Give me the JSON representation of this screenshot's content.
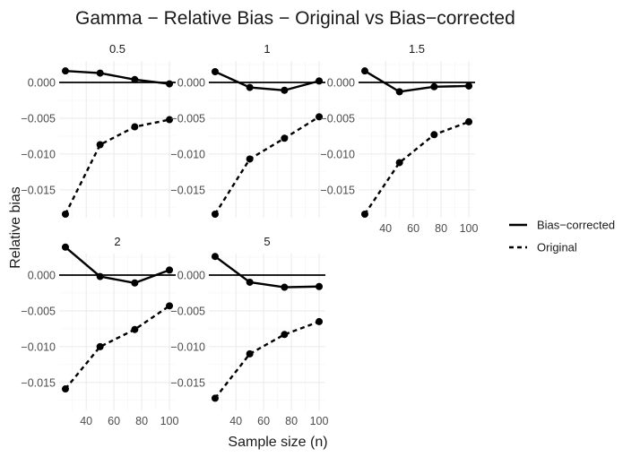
{
  "chart_data": {
    "type": "line",
    "title": "Gamma − Relative Bias − Original vs Bias−corrected",
    "xlabel": "Sample size (n)",
    "ylabel": "Relative bias",
    "x": [
      25,
      50,
      75,
      100
    ],
    "x_ticks": [
      40,
      60,
      80,
      100
    ],
    "x_tick_labels": [
      "40",
      "60",
      "80",
      "100"
    ],
    "x_range": [
      20.5,
      104.5
    ],
    "y_range": [
      -0.0189,
      0.003
    ],
    "y_ticks": [
      0.0,
      -0.005,
      -0.01,
      -0.015
    ],
    "y_tick_labels": [
      "0.000",
      "−0.005",
      "−0.010",
      "−0.015"
    ],
    "reference_line_y": 0,
    "legend": {
      "position": "right",
      "entries": [
        {
          "label": "Bias−corrected",
          "style": "solid"
        },
        {
          "label": "Original",
          "style": "dashed"
        }
      ]
    },
    "panels": [
      {
        "label": "0.5",
        "series": [
          {
            "name": "Bias−corrected",
            "values": [
              0.0016,
              0.0013,
              0.0004,
              -0.0002
            ]
          },
          {
            "name": "Original",
            "values": [
              -0.0184,
              -0.0087,
              -0.0062,
              -0.0052
            ]
          }
        ]
      },
      {
        "label": "1",
        "series": [
          {
            "name": "Bias−corrected",
            "values": [
              0.0015,
              -0.0007,
              -0.0011,
              0.0002
            ]
          },
          {
            "name": "Original",
            "values": [
              -0.0184,
              -0.0107,
              -0.0078,
              -0.0048
            ]
          }
        ]
      },
      {
        "label": "1.5",
        "series": [
          {
            "name": "Bias−corrected",
            "values": [
              0.0016,
              -0.0013,
              -0.0006,
              -0.0005
            ]
          },
          {
            "name": "Original",
            "values": [
              -0.0184,
              -0.0112,
              -0.0073,
              -0.0055
            ]
          }
        ]
      },
      {
        "label": "2",
        "series": [
          {
            "name": "Bias−corrected",
            "values": [
              0.0039,
              -0.0002,
              -0.0011,
              0.0007
            ]
          },
          {
            "name": "Original",
            "values": [
              -0.0159,
              -0.01,
              -0.0076,
              -0.0043
            ]
          }
        ]
      },
      {
        "label": "5",
        "series": [
          {
            "name": "Bias−corrected",
            "values": [
              0.0026,
              -0.001,
              -0.0017,
              -0.0016
            ]
          },
          {
            "name": "Original",
            "values": [
              -0.0172,
              -0.011,
              -0.0083,
              -0.0065
            ]
          }
        ]
      }
    ]
  }
}
